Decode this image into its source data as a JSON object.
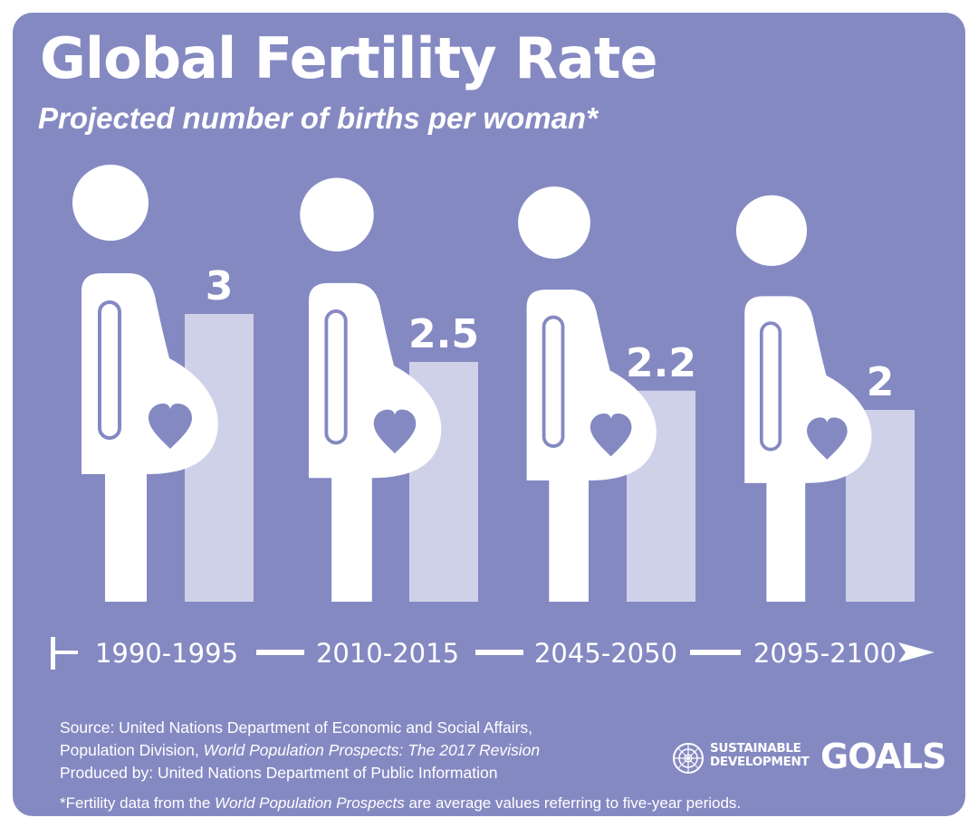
{
  "chart_data": {
    "type": "bar",
    "title": "Global Fertility Rate",
    "subtitle": "Projected number of births per woman*",
    "categories": [
      "1990-1995",
      "2010-2015",
      "2045-2050",
      "2095-2100"
    ],
    "values": [
      3,
      2.5,
      2.2,
      2
    ],
    "value_labels": [
      "3",
      "2.5",
      "2.2",
      "2"
    ],
    "bar_color": "#cfd1e9",
    "background_color": "#8589c2",
    "figure_color": "#ffffff"
  },
  "source": {
    "line1": "Source: United Nations Department of Economic and Social Affairs,",
    "line2_prefix": "Population Division, ",
    "line2_title": "World Population Prospects: The 2017 Revision",
    "line3": "Produced by: United Nations Department of Public Information"
  },
  "footnote": {
    "prefix": "*Fertility data from the ",
    "title": "World Population Prospects",
    "suffix": " are average values referring to five-year periods."
  },
  "logo": {
    "line1": "SUSTAINABLE",
    "line2": "DEVELOPMENT",
    "goals": "GOALS",
    "icon": "un-emblem-icon"
  }
}
